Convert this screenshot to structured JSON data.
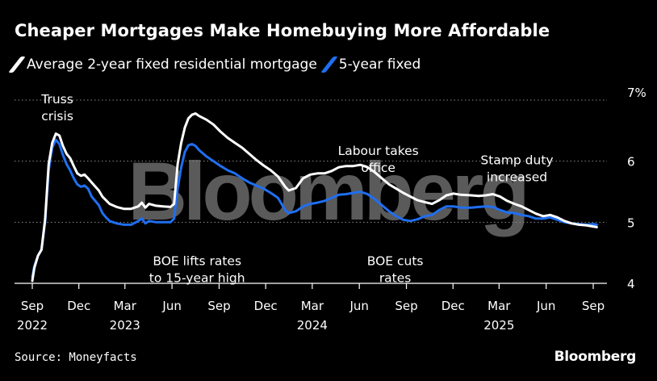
{
  "header": {
    "title": "Cheaper Mortgages Make Homebuying More Affordable"
  },
  "footer": {
    "source": "Source: Moneyfacts",
    "brand": "Bloomberg"
  },
  "watermark": "Bloomberg",
  "colors": {
    "background": "#000000",
    "series_2yr": "#ffffff",
    "series_5yr": "#1f6ff0",
    "grid": "#8a8a8a",
    "watermark": "#5a5a5a"
  },
  "chart_data": {
    "type": "line",
    "title": "Cheaper Mortgages Make Homebuying More Affordable",
    "y_axis": {
      "ylim": [
        4,
        7
      ],
      "ticks": [
        4,
        5,
        6,
        7
      ],
      "tick_labels": [
        "4",
        "5",
        "6",
        "7%"
      ],
      "position": "right",
      "grid": true
    },
    "x_axis": {
      "range": [
        "2022-09-01",
        "2025-09-30"
      ],
      "ticks": [
        {
          "date": "2022-09-01",
          "label": "Sep",
          "year": "2022"
        },
        {
          "date": "2022-12-01",
          "label": "Dec",
          "year": ""
        },
        {
          "date": "2023-03-01",
          "label": "Mar",
          "year": "2023"
        },
        {
          "date": "2023-06-01",
          "label": "Jun",
          "year": ""
        },
        {
          "date": "2023-09-01",
          "label": "Sep",
          "year": ""
        },
        {
          "date": "2023-12-01",
          "label": "Dec",
          "year": ""
        },
        {
          "date": "2024-03-01",
          "label": "Mar",
          "year": "2024"
        },
        {
          "date": "2024-06-01",
          "label": "Jun",
          "year": ""
        },
        {
          "date": "2024-09-01",
          "label": "Sep",
          "year": ""
        },
        {
          "date": "2024-12-01",
          "label": "Dec",
          "year": ""
        },
        {
          "date": "2025-03-01",
          "label": "Mar",
          "year": "2025"
        },
        {
          "date": "2025-06-01",
          "label": "Jun",
          "year": ""
        },
        {
          "date": "2025-09-01",
          "label": "Sep",
          "year": ""
        }
      ]
    },
    "legend_placement": "top-left",
    "series": [
      {
        "name": "Average 2-year fixed residential mortgage",
        "color": "#ffffff",
        "points": [
          [
            "2022-09-01",
            4.04
          ],
          [
            "2022-09-05",
            4.25
          ],
          [
            "2022-09-12",
            4.45
          ],
          [
            "2022-09-19",
            4.55
          ],
          [
            "2022-09-26",
            5.05
          ],
          [
            "2022-10-03",
            5.95
          ],
          [
            "2022-10-10",
            6.3
          ],
          [
            "2022-10-17",
            6.45
          ],
          [
            "2022-10-24",
            6.42
          ],
          [
            "2022-10-31",
            6.25
          ],
          [
            "2022-11-07",
            6.12
          ],
          [
            "2022-11-14",
            6.05
          ],
          [
            "2022-11-21",
            5.92
          ],
          [
            "2022-11-28",
            5.8
          ],
          [
            "2022-12-05",
            5.76
          ],
          [
            "2022-12-12",
            5.78
          ],
          [
            "2022-12-19",
            5.72
          ],
          [
            "2022-12-26",
            5.65
          ],
          [
            "2023-01-09",
            5.52
          ],
          [
            "2023-01-16",
            5.42
          ],
          [
            "2023-01-23",
            5.36
          ],
          [
            "2023-01-30",
            5.3
          ],
          [
            "2023-02-13",
            5.25
          ],
          [
            "2023-02-27",
            5.22
          ],
          [
            "2023-03-13",
            5.22
          ],
          [
            "2023-03-27",
            5.26
          ],
          [
            "2023-04-03",
            5.32
          ],
          [
            "2023-04-10",
            5.24
          ],
          [
            "2023-04-17",
            5.3
          ],
          [
            "2023-05-01",
            5.27
          ],
          [
            "2023-05-15",
            5.26
          ],
          [
            "2023-05-29",
            5.25
          ],
          [
            "2023-06-05",
            5.3
          ],
          [
            "2023-06-12",
            5.95
          ],
          [
            "2023-06-19",
            6.3
          ],
          [
            "2023-06-26",
            6.55
          ],
          [
            "2023-07-03",
            6.7
          ],
          [
            "2023-07-10",
            6.76
          ],
          [
            "2023-07-17",
            6.78
          ],
          [
            "2023-07-24",
            6.74
          ],
          [
            "2023-08-07",
            6.68
          ],
          [
            "2023-08-21",
            6.6
          ],
          [
            "2023-09-04",
            6.48
          ],
          [
            "2023-09-18",
            6.38
          ],
          [
            "2023-10-02",
            6.3
          ],
          [
            "2023-10-16",
            6.22
          ],
          [
            "2023-10-30",
            6.12
          ],
          [
            "2023-11-13",
            6.02
          ],
          [
            "2023-11-27",
            5.93
          ],
          [
            "2023-12-11",
            5.85
          ],
          [
            "2023-12-25",
            5.75
          ],
          [
            "2024-01-08",
            5.58
          ],
          [
            "2024-01-15",
            5.52
          ],
          [
            "2024-01-29",
            5.56
          ],
          [
            "2024-02-12",
            5.72
          ],
          [
            "2024-02-26",
            5.78
          ],
          [
            "2024-03-11",
            5.8
          ],
          [
            "2024-03-25",
            5.8
          ],
          [
            "2024-04-08",
            5.84
          ],
          [
            "2024-04-22",
            5.9
          ],
          [
            "2024-05-06",
            5.92
          ],
          [
            "2024-05-20",
            5.92
          ],
          [
            "2024-06-03",
            5.94
          ],
          [
            "2024-06-17",
            5.9
          ],
          [
            "2024-07-01",
            5.82
          ],
          [
            "2024-07-15",
            5.72
          ],
          [
            "2024-07-29",
            5.62
          ],
          [
            "2024-08-12",
            5.55
          ],
          [
            "2024-08-26",
            5.48
          ],
          [
            "2024-09-09",
            5.42
          ],
          [
            "2024-09-23",
            5.36
          ],
          [
            "2024-10-07",
            5.33
          ],
          [
            "2024-10-21",
            5.3
          ],
          [
            "2024-11-04",
            5.36
          ],
          [
            "2024-11-18",
            5.44
          ],
          [
            "2024-12-02",
            5.47
          ],
          [
            "2024-12-16",
            5.45
          ],
          [
            "2025-01-06",
            5.44
          ],
          [
            "2025-01-20",
            5.43
          ],
          [
            "2025-02-03",
            5.44
          ],
          [
            "2025-02-17",
            5.46
          ],
          [
            "2025-03-03",
            5.42
          ],
          [
            "2025-03-17",
            5.35
          ],
          [
            "2025-03-31",
            5.3
          ],
          [
            "2025-04-14",
            5.26
          ],
          [
            "2025-04-28",
            5.2
          ],
          [
            "2025-05-12",
            5.14
          ],
          [
            "2025-05-26",
            5.1
          ],
          [
            "2025-06-09",
            5.12
          ],
          [
            "2025-06-23",
            5.08
          ],
          [
            "2025-07-07",
            5.02
          ],
          [
            "2025-07-21",
            4.98
          ],
          [
            "2025-08-04",
            4.96
          ],
          [
            "2025-08-18",
            4.95
          ],
          [
            "2025-09-01",
            4.93
          ],
          [
            "2025-09-08",
            4.92
          ]
        ]
      },
      {
        "name": "5-year fixed",
        "color": "#1f6ff0",
        "points": [
          [
            "2022-09-01",
            4.1
          ],
          [
            "2022-09-05",
            4.28
          ],
          [
            "2022-09-12",
            4.45
          ],
          [
            "2022-09-19",
            4.55
          ],
          [
            "2022-09-26",
            5.0
          ],
          [
            "2022-10-03",
            5.85
          ],
          [
            "2022-10-10",
            6.22
          ],
          [
            "2022-10-17",
            6.35
          ],
          [
            "2022-10-24",
            6.28
          ],
          [
            "2022-10-31",
            6.1
          ],
          [
            "2022-11-07",
            5.95
          ],
          [
            "2022-11-14",
            5.85
          ],
          [
            "2022-11-21",
            5.72
          ],
          [
            "2022-11-28",
            5.62
          ],
          [
            "2022-12-05",
            5.58
          ],
          [
            "2022-12-12",
            5.6
          ],
          [
            "2022-12-19",
            5.55
          ],
          [
            "2022-12-26",
            5.42
          ],
          [
            "2023-01-09",
            5.28
          ],
          [
            "2023-01-16",
            5.15
          ],
          [
            "2023-01-23",
            5.08
          ],
          [
            "2023-01-30",
            5.02
          ],
          [
            "2023-02-13",
            4.98
          ],
          [
            "2023-02-27",
            4.96
          ],
          [
            "2023-03-13",
            4.96
          ],
          [
            "2023-03-27",
            5.02
          ],
          [
            "2023-04-03",
            5.06
          ],
          [
            "2023-04-10",
            4.98
          ],
          [
            "2023-04-17",
            5.02
          ],
          [
            "2023-05-01",
            5.0
          ],
          [
            "2023-05-15",
            5.0
          ],
          [
            "2023-05-29",
            5.0
          ],
          [
            "2023-06-05",
            5.06
          ],
          [
            "2023-06-12",
            5.55
          ],
          [
            "2023-06-19",
            5.9
          ],
          [
            "2023-06-26",
            6.15
          ],
          [
            "2023-07-03",
            6.26
          ],
          [
            "2023-07-10",
            6.28
          ],
          [
            "2023-07-17",
            6.25
          ],
          [
            "2023-07-24",
            6.18
          ],
          [
            "2023-08-07",
            6.08
          ],
          [
            "2023-08-21",
            6.0
          ],
          [
            "2023-09-04",
            5.92
          ],
          [
            "2023-09-18",
            5.85
          ],
          [
            "2023-10-02",
            5.8
          ],
          [
            "2023-10-16",
            5.72
          ],
          [
            "2023-10-30",
            5.65
          ],
          [
            "2023-11-13",
            5.6
          ],
          [
            "2023-11-27",
            5.55
          ],
          [
            "2023-12-11",
            5.48
          ],
          [
            "2023-12-25",
            5.4
          ],
          [
            "2024-01-08",
            5.2
          ],
          [
            "2024-01-15",
            5.15
          ],
          [
            "2024-01-29",
            5.18
          ],
          [
            "2024-02-12",
            5.26
          ],
          [
            "2024-02-26",
            5.3
          ],
          [
            "2024-03-11",
            5.32
          ],
          [
            "2024-03-25",
            5.35
          ],
          [
            "2024-04-08",
            5.4
          ],
          [
            "2024-04-22",
            5.45
          ],
          [
            "2024-05-06",
            5.46
          ],
          [
            "2024-05-20",
            5.48
          ],
          [
            "2024-06-03",
            5.5
          ],
          [
            "2024-06-17",
            5.46
          ],
          [
            "2024-07-01",
            5.38
          ],
          [
            "2024-07-15",
            5.28
          ],
          [
            "2024-07-29",
            5.18
          ],
          [
            "2024-08-12",
            5.1
          ],
          [
            "2024-08-26",
            5.04
          ],
          [
            "2024-09-09",
            5.02
          ],
          [
            "2024-09-23",
            5.05
          ],
          [
            "2024-10-07",
            5.1
          ],
          [
            "2024-10-21",
            5.12
          ],
          [
            "2024-11-04",
            5.2
          ],
          [
            "2024-11-18",
            5.26
          ],
          [
            "2024-12-02",
            5.26
          ],
          [
            "2024-12-16",
            5.24
          ],
          [
            "2025-01-06",
            5.24
          ],
          [
            "2025-01-20",
            5.25
          ],
          [
            "2025-02-03",
            5.26
          ],
          [
            "2025-02-17",
            5.25
          ],
          [
            "2025-03-03",
            5.2
          ],
          [
            "2025-03-17",
            5.16
          ],
          [
            "2025-03-31",
            5.15
          ],
          [
            "2025-04-14",
            5.12
          ],
          [
            "2025-04-28",
            5.1
          ],
          [
            "2025-05-12",
            5.06
          ],
          [
            "2025-05-26",
            5.06
          ],
          [
            "2025-06-09",
            5.08
          ],
          [
            "2025-06-23",
            5.04
          ],
          [
            "2025-07-07",
            5.0
          ],
          [
            "2025-07-21",
            4.98
          ],
          [
            "2025-08-04",
            4.97
          ],
          [
            "2025-08-18",
            4.96
          ],
          [
            "2025-09-01",
            4.97
          ],
          [
            "2025-09-08",
            4.96
          ]
        ]
      }
    ],
    "annotations": [
      {
        "lines": [
          "Truss",
          "crisis"
        ],
        "date": "2022-10-20",
        "value": 6.95,
        "anchor": "middle"
      },
      {
        "lines": [
          "BOE lifts rates",
          "to 15-year high"
        ],
        "date": "2023-07-20",
        "value": 4.3,
        "anchor": "middle"
      },
      {
        "lines": [
          "Labour takes",
          "office"
        ],
        "date": "2024-07-08",
        "value": 6.1,
        "anchor": "middle"
      },
      {
        "lines": [
          "BOE cuts",
          "rates"
        ],
        "date": "2024-08-10",
        "value": 4.3,
        "anchor": "middle"
      },
      {
        "lines": [
          "Stamp duty",
          "increased"
        ],
        "date": "2025-04-05",
        "value": 5.95,
        "anchor": "middle"
      }
    ]
  }
}
